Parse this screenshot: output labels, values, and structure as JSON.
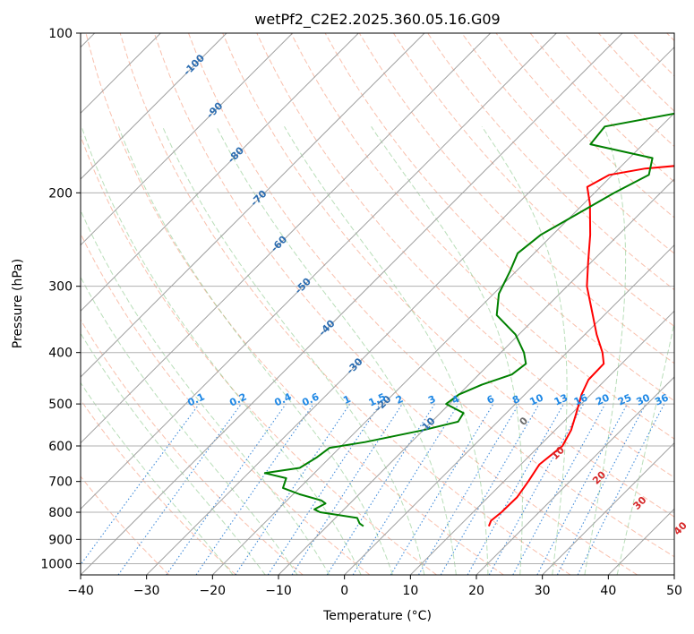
{
  "chart_data": {
    "type": "line",
    "subtype": "skew-t log-p diagram",
    "title": "wetPf2_C2E2.2025.360.05.16.G09",
    "xlabel": "Temperature (°C)",
    "ylabel": "Pressure (hPa)",
    "xlim": [
      -40,
      50
    ],
    "ylim": [
      1050,
      100
    ],
    "x_ticks": [
      -40,
      -30,
      -20,
      -10,
      0,
      10,
      20,
      30,
      40,
      50
    ],
    "y_ticks": [
      1000,
      900,
      800,
      700,
      600,
      500,
      400,
      300,
      200,
      100
    ],
    "grid": "on",
    "series": [
      {
        "name": "temperature",
        "color": "#ff0000",
        "points": [
          {
            "p": 850,
            "t": 14.5
          },
          {
            "p": 830,
            "t": 14.0
          },
          {
            "p": 800,
            "t": 14.3
          },
          {
            "p": 750,
            "t": 14.4
          },
          {
            "p": 700,
            "t": 13.7
          },
          {
            "p": 650,
            "t": 12.8
          },
          {
            "p": 600,
            "t": 13.5
          },
          {
            "p": 560,
            "t": 12.4
          },
          {
            "p": 520,
            "t": 10.6
          },
          {
            "p": 480,
            "t": 8.6
          },
          {
            "p": 450,
            "t": 7.4
          },
          {
            "p": 420,
            "t": 7.3
          },
          {
            "p": 400,
            "t": 5.4
          },
          {
            "p": 370,
            "t": 1.8
          },
          {
            "p": 330,
            "t": -3.0
          },
          {
            "p": 300,
            "t": -7.0
          },
          {
            "p": 270,
            "t": -10.5
          },
          {
            "p": 240,
            "t": -14.3
          },
          {
            "p": 210,
            "t": -19.0
          },
          {
            "p": 195,
            "t": -22.0
          },
          {
            "p": 185,
            "t": -20.5
          },
          {
            "p": 180,
            "t": -16.0
          },
          {
            "p": 175,
            "t": -6.0
          },
          {
            "p": 170,
            "t": -1.0
          },
          {
            "p": 160,
            "t": 2.5
          },
          {
            "p": 150,
            "t": 3.4
          },
          {
            "p": 140,
            "t": 3.0
          },
          {
            "p": 130,
            "t": 3.5
          },
          {
            "p": 125,
            "t": 7.0
          },
          {
            "p": 118,
            "t": 12.0
          },
          {
            "p": 110,
            "t": 13.0
          },
          {
            "p": 100,
            "t": 15.0
          }
        ]
      },
      {
        "name": "dewpoint",
        "color": "#008000",
        "points": [
          {
            "p": 850,
            "t": -4.5
          },
          {
            "p": 840,
            "t": -5.5
          },
          {
            "p": 820,
            "t": -6.7
          },
          {
            "p": 800,
            "t": -13.2
          },
          {
            "p": 790,
            "t": -14.5
          },
          {
            "p": 770,
            "t": -13.7
          },
          {
            "p": 760,
            "t": -14.8
          },
          {
            "p": 740,
            "t": -19.0
          },
          {
            "p": 720,
            "t": -22.5
          },
          {
            "p": 690,
            "t": -23.5
          },
          {
            "p": 675,
            "t": -27.5
          },
          {
            "p": 660,
            "t": -23.0
          },
          {
            "p": 630,
            "t": -22.0
          },
          {
            "p": 605,
            "t": -21.5
          },
          {
            "p": 590,
            "t": -17.0
          },
          {
            "p": 560,
            "t": -10.0
          },
          {
            "p": 540,
            "t": -6.0
          },
          {
            "p": 520,
            "t": -6.5
          },
          {
            "p": 500,
            "t": -10.5
          },
          {
            "p": 480,
            "t": -10.0
          },
          {
            "p": 460,
            "t": -8.0
          },
          {
            "p": 440,
            "t": -5.0
          },
          {
            "p": 420,
            "t": -4.5
          },
          {
            "p": 400,
            "t": -6.5
          },
          {
            "p": 370,
            "t": -10.5
          },
          {
            "p": 340,
            "t": -16.3
          },
          {
            "p": 310,
            "t": -19.2
          },
          {
            "p": 280,
            "t": -21.0
          },
          {
            "p": 260,
            "t": -22.5
          },
          {
            "p": 240,
            "t": -21.8
          },
          {
            "p": 220,
            "t": -19.5
          },
          {
            "p": 200,
            "t": -17.0
          },
          {
            "p": 185,
            "t": -14.5
          },
          {
            "p": 172,
            "t": -16.5
          },
          {
            "p": 162,
            "t": -28.0
          },
          {
            "p": 150,
            "t": -28.5
          },
          {
            "p": 140,
            "t": -18.0
          },
          {
            "p": 130,
            "t": -14.0
          },
          {
            "p": 120,
            "t": -16.0
          },
          {
            "p": 110,
            "t": -16.0
          },
          {
            "p": 105,
            "t": -11.0
          },
          {
            "p": 100,
            "t": -10.0
          }
        ]
      }
    ],
    "isotherm_labels": [
      -100,
      -90,
      -80,
      -70,
      -60,
      -50,
      -40,
      -30,
      -20,
      -10
    ],
    "mixing_ratio_labels": [
      "0.1",
      "0.2",
      "0.4",
      "0.6",
      "1",
      "1.5",
      "2",
      "3",
      "4",
      "6",
      "8",
      "10",
      "13",
      "16",
      "20",
      "25",
      "30",
      "36"
    ],
    "moist_adiabat_labels": [
      "0",
      "10",
      "20",
      "30",
      "40"
    ]
  }
}
